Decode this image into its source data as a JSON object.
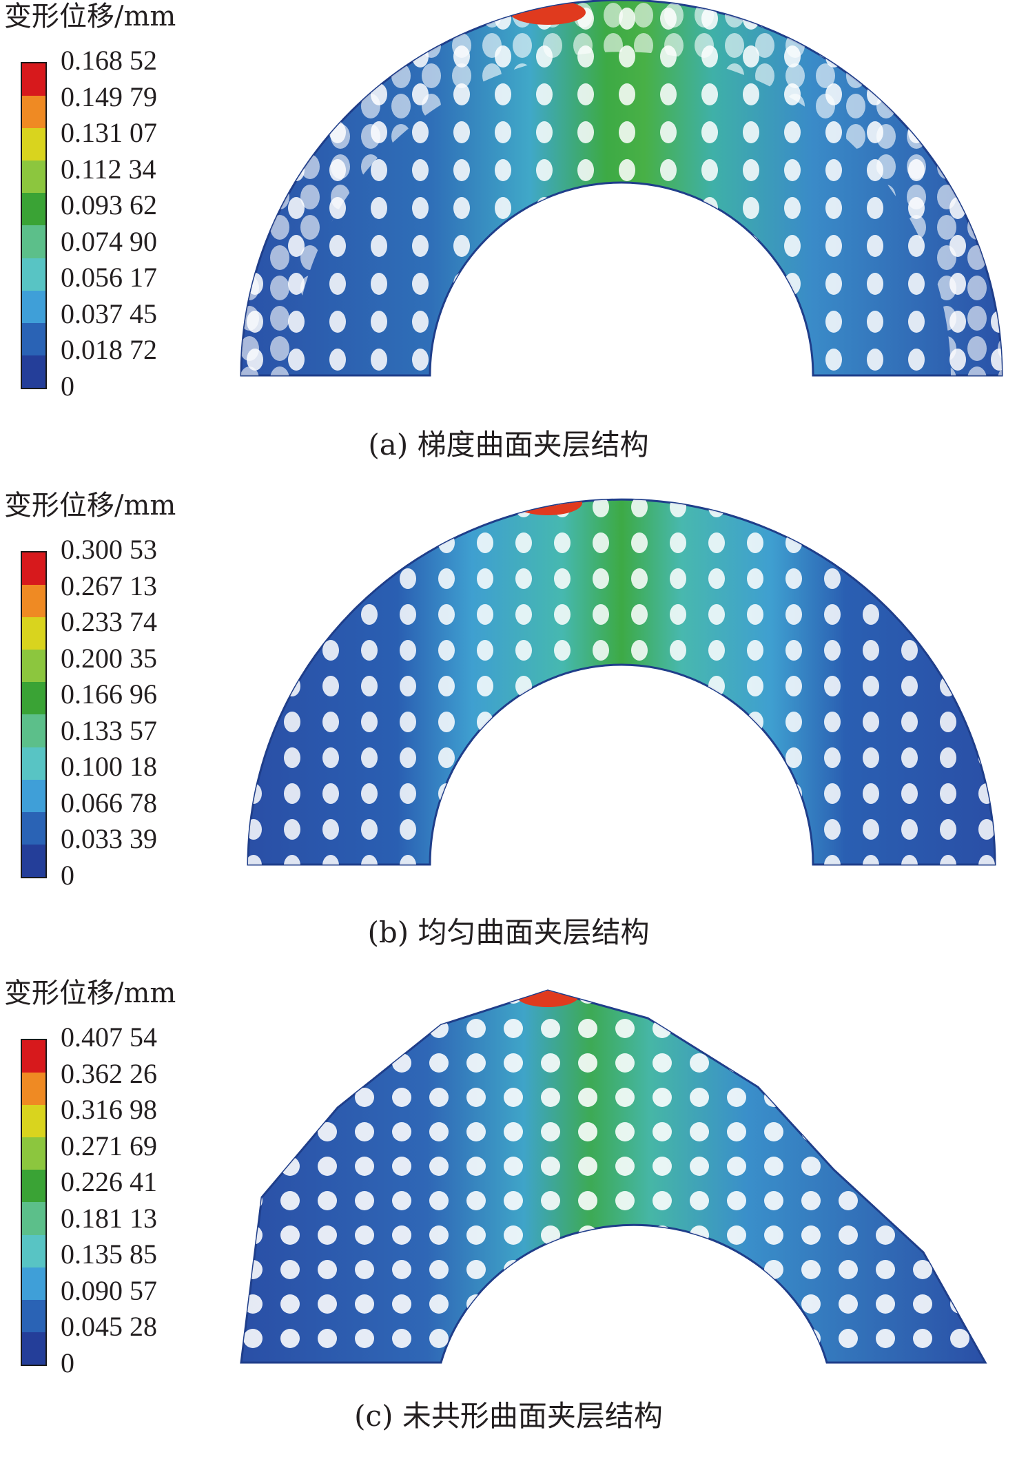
{
  "panels": [
    {
      "legend_title": "变形位移/mm",
      "legend_values": [
        "0.168 52",
        "0.149 79",
        "0.131 07",
        "0.112 34",
        "0.093 62",
        "0.074 90",
        "0.056 17",
        "0.037 45",
        "0.018 72",
        "0"
      ],
      "caption": "(a) 梯度曲面夹层结构"
    },
    {
      "legend_title": "变形位移/mm",
      "legend_values": [
        "0.300 53",
        "0.267 13",
        "0.233 74",
        "0.200 35",
        "0.166 96",
        "0.133 57",
        "0.100 18",
        "0.066 78",
        "0.033 39",
        "0"
      ],
      "caption": "(b) 均匀曲面夹层结构"
    },
    {
      "legend_title": "变形位移/mm",
      "legend_values": [
        "0.407 54",
        "0.362 26",
        "0.316 98",
        "0.271 69",
        "0.226 41",
        "0.181 13",
        "0.135 85",
        "0.090 57",
        "0.045 28",
        "0"
      ],
      "caption": "(c) 未共形曲面夹层结构"
    }
  ],
  "legend_colors": [
    "#d7191c",
    "#ef8a23",
    "#d9d41e",
    "#8cc63e",
    "#3aa335",
    "#5cbf8a",
    "#58c4c4",
    "#3f9fd8",
    "#2a63b5",
    "#243e99"
  ]
}
